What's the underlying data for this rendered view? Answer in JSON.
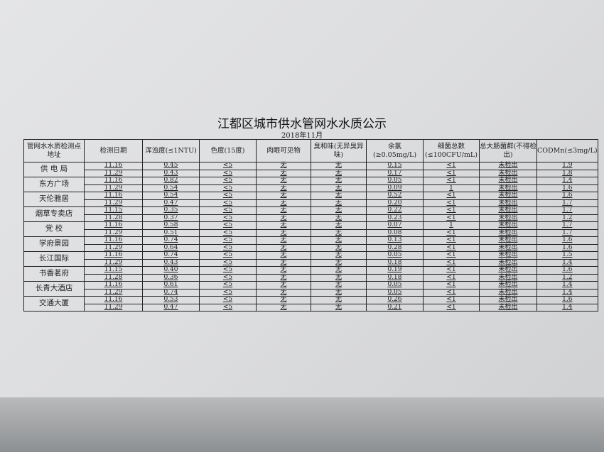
{
  "title": "江都区城市供水管网水水质公示",
  "subtitle": "2018年11月",
  "headers": [
    "管网水水质检测点地址",
    "检测日期",
    "浑浊度(≤1NTU)",
    "色度(15度)",
    "肉眼可见物",
    "臭和味(无异臭异味)",
    "余氯(≥0.05mg/L)",
    "细菌总数(≤100CFU/mL)",
    "总大肠菌群(不得检出)",
    "CODMn(≤3mg/L)"
  ],
  "sites": [
    {
      "name": "供 电 局",
      "rows": [
        [
          "11.16",
          "0.45",
          "<5",
          "无",
          "无",
          "0.15",
          "<1",
          "未检出",
          "1.9"
        ],
        [
          "11.29",
          "0.43",
          "<5",
          "无",
          "无",
          "0.17",
          "<1",
          "未检出",
          "1.8"
        ]
      ]
    },
    {
      "name": "东方广场",
      "rows": [
        [
          "11.16",
          "0.82",
          "<5",
          "无",
          "无",
          "0.05",
          "<1",
          "未检出",
          "1.4"
        ],
        [
          "11.29",
          "0.54",
          "<5",
          "无",
          "无",
          "0.09",
          "1",
          "未检出",
          "1.6"
        ]
      ]
    },
    {
      "name": "天伦雅居",
      "rows": [
        [
          "11.16",
          "0.54",
          "<5",
          "无",
          "无",
          "0.52",
          "<1",
          "未检出",
          "1.6"
        ],
        [
          "11.29",
          "0.47",
          "<5",
          "无",
          "无",
          "0.20",
          "<1",
          "未检出",
          "1.7"
        ]
      ]
    },
    {
      "name": "烟草专卖店",
      "rows": [
        [
          "11.15",
          "0.35",
          "<5",
          "无",
          "无",
          "0.22",
          "<1",
          "未检出",
          "1.7"
        ],
        [
          "11.28",
          "0.37",
          "<5",
          "无",
          "无",
          "0.23",
          "<1",
          "未检出",
          "1.2"
        ]
      ]
    },
    {
      "name": "党 校",
      "rows": [
        [
          "11.16",
          "0.58",
          "<5",
          "无",
          "无",
          "0.07",
          "1",
          "未检出",
          "1.7"
        ],
        [
          "11.29",
          "0.51",
          "<5",
          "无",
          "无",
          "0.08",
          "<1",
          "未检出",
          "1.7"
        ]
      ]
    },
    {
      "name": "学府景园",
      "rows": [
        [
          "11.16",
          "0.74",
          "<5",
          "无",
          "无",
          "0.13",
          "<1",
          "未检出",
          "1.6"
        ],
        [
          "11.29",
          "0.64",
          "<5",
          "无",
          "无",
          "0.28",
          "<1",
          "未检出",
          "1.6"
        ]
      ]
    },
    {
      "name": "长江国际",
      "rows": [
        [
          "11.16",
          "0.74",
          "<5",
          "无",
          "无",
          "0.05",
          "<1",
          "未检出",
          "1.5"
        ],
        [
          "11.29",
          "0.43",
          "<5",
          "无",
          "无",
          "0.18",
          "<1",
          "未检出",
          "1.4"
        ]
      ]
    },
    {
      "name": "书香茗府",
      "rows": [
        [
          "11.15",
          "0.40",
          "<5",
          "无",
          "无",
          "0.19",
          "<1",
          "未检出",
          "1.6"
        ],
        [
          "11.28",
          "0.36",
          "<5",
          "无",
          "无",
          "0.18",
          "<1",
          "未检出",
          "1.2"
        ]
      ]
    },
    {
      "name": "长青大酒店",
      "rows": [
        [
          "11.16",
          "0.61",
          "<5",
          "无",
          "无",
          "0.05",
          "<1",
          "未检出",
          "1.4"
        ],
        [
          "11.29",
          "0.74",
          "<5",
          "无",
          "无",
          "0.05",
          "<1",
          "未检出",
          "1.4"
        ]
      ]
    },
    {
      "name": "交通大厦",
      "rows": [
        [
          "11.16",
          "0.53",
          "<5",
          "无",
          "无",
          "0.26",
          "<1",
          "未检出",
          "1.6"
        ],
        [
          "11.29",
          "0.47",
          "<5",
          "无",
          "无",
          "0.21",
          "<1",
          "未检出",
          "1.4"
        ]
      ]
    }
  ]
}
